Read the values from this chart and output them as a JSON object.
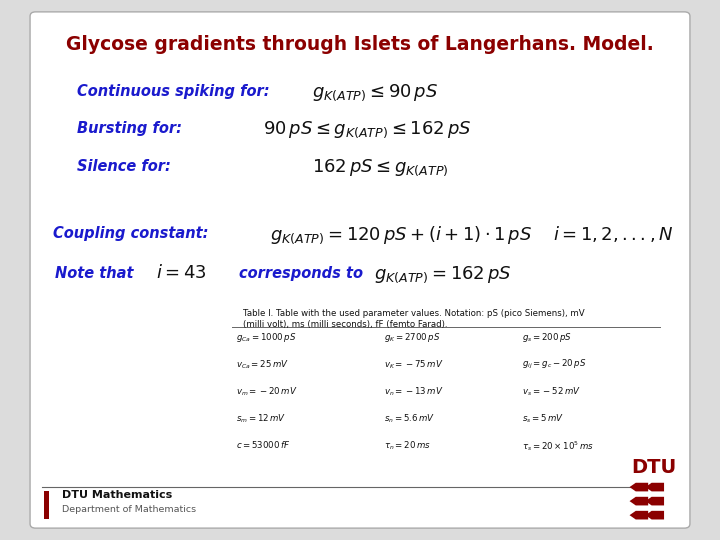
{
  "title": "Glycose gradients through Islets of Langerhans. Model.",
  "title_color": "#8B0000",
  "blue_color": "#1A1ACD",
  "black_color": "#111111",
  "dtu_color": "#8B0000",
  "label1": "Continuous spiking for:",
  "label2": "Bursting for:",
  "label3": "Silence for:",
  "label_coupling": "Coupling constant:",
  "note_text1": "Note that",
  "note_text2": "corresponds to",
  "table_caption_line1": "Table I. Table with the used parameter values. Notation: pS (pico Siemens), mV",
  "table_caption_line2": "(milli volt), ms (milli seconds), fF (femto Farad).",
  "footer_text1": "DTU Mathematics",
  "footer_text2": "Department of Mathematics",
  "slide_bg": "#FFFFFF",
  "outer_bg": "#DCDCDC"
}
